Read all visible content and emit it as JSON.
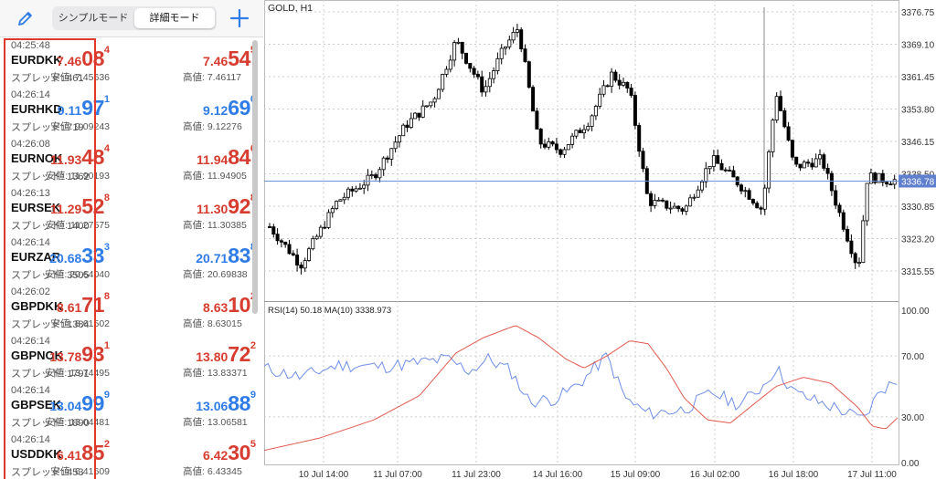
{
  "toolbar": {
    "mode_simple": "シンプルモード",
    "mode_detail": "詳細モード",
    "edit_icon": "pencil-icon",
    "add_icon": "plus-icon"
  },
  "quotes": [
    {
      "time": "04:25:48",
      "symbol": "EURDKK",
      "spread": "スプレッド: 461",
      "color": "red",
      "bid": {
        "small": "7.46",
        "big": "08",
        "pip": "4"
      },
      "ask": {
        "small": "7.46",
        "big": "54",
        "pip": "5"
      },
      "low": "安値: 7.45636",
      "high": "高値: 7.46117"
    },
    {
      "time": "04:26:14",
      "symbol": "EURHKD",
      "spread": "スプレッド: 719",
      "color": "blue",
      "bid": {
        "small": "9.11",
        "big": "97",
        "pip": "1"
      },
      "ask": {
        "small": "9.12",
        "big": "69",
        "pip": "0"
      },
      "low": "安値: 9.09243",
      "high": "高値: 9.12276"
    },
    {
      "time": "04:26:08",
      "symbol": "EURNOK",
      "spread": "スプレッド: 1362",
      "color": "red",
      "bid": {
        "small": "11.93",
        "big": "48",
        "pip": "4"
      },
      "ask": {
        "small": "11.94",
        "big": "84",
        "pip": "6"
      },
      "low": "安値: 11.90193",
      "high": "高値: 11.94905"
    },
    {
      "time": "04:26:13",
      "symbol": "EURSEK",
      "spread": "スプレッド: 1400",
      "color": "red",
      "bid": {
        "small": "11.29",
        "big": "52",
        "pip": "8"
      },
      "ask": {
        "small": "11.30",
        "big": "92",
        "pip": "8"
      },
      "low": "安値: 11.27575",
      "high": "高値: 11.30385"
    },
    {
      "time": "04:26:14",
      "symbol": "EURZAR",
      "spread": "スプレッド: 3505",
      "color": "blue",
      "bid": {
        "small": "20.68",
        "big": "33",
        "pip": "3"
      },
      "ask": {
        "small": "20.71",
        "big": "83",
        "pip": "8"
      },
      "low": "安値: 20.64040",
      "high": "高値: 20.69838"
    },
    {
      "time": "04:26:02",
      "symbol": "GBPDKK",
      "spread": "スプレッド: 1384",
      "color": "red",
      "bid": {
        "small": "8.61",
        "big": "71",
        "pip": "8"
      },
      "ask": {
        "small": "8.63",
        "big": "10",
        "pip": "2"
      },
      "low": "安値: 8.61502",
      "high": "高値: 8.63015"
    },
    {
      "time": "04:26:14",
      "symbol": "GBPNOK",
      "spread": "スプレッド: 1791",
      "color": "red",
      "bid": {
        "small": "13.78",
        "big": "93",
        "pip": "1"
      },
      "ask": {
        "small": "13.80",
        "big": "72",
        "pip": "2"
      },
      "low": "安値: 13.74495",
      "high": "高値: 13.83371"
    },
    {
      "time": "04:26:14",
      "symbol": "GBPSEK",
      "spread": "スプレッド: 1890",
      "color": "blue",
      "bid": {
        "small": "13.04",
        "big": "99",
        "pip": "9"
      },
      "ask": {
        "small": "13.06",
        "big": "88",
        "pip": "9"
      },
      "low": "安値: 13.04481",
      "high": "高値: 13.06581"
    },
    {
      "time": "04:26:14",
      "symbol": "USDDKK",
      "spread": "スプレッド: 453",
      "color": "red",
      "bid": {
        "small": "6.41",
        "big": "85",
        "pip": "2"
      },
      "ask": {
        "small": "6.42",
        "big": "30",
        "pip": "5"
      },
      "low": "安値: 6.41609",
      "high": "高値: 6.43345"
    }
  ],
  "chart": {
    "title": "GOLD, H1",
    "price_ticks": [
      "3376.75",
      "3369.10",
      "3361.45",
      "3353.80",
      "3346.15",
      "3338.50",
      "3330.85",
      "3323.20",
      "3315.55"
    ],
    "current_price": "3336.78",
    "rsi_label": "RSI(14) 50.18 MA(10) 3338.973",
    "rsi_ticks": [
      "100.00",
      "70.00",
      "30.00",
      "0.00"
    ],
    "time_ticks": [
      "10 Jul 14:00",
      "11 Jul 07:00",
      "11 Jul 23:00",
      "14 Jul 16:00",
      "15 Jul 09:00",
      "16 Jul 02:00",
      "16 Jul 18:00",
      "17 Jul 11:00"
    ],
    "colors": {
      "bull": "#ffffff",
      "bear": "#000000",
      "rsi": "#6f8fe8",
      "ma": "#e05a4f",
      "price_line": "#6f8fd8",
      "price_tag": "#5f7fcf"
    }
  }
}
